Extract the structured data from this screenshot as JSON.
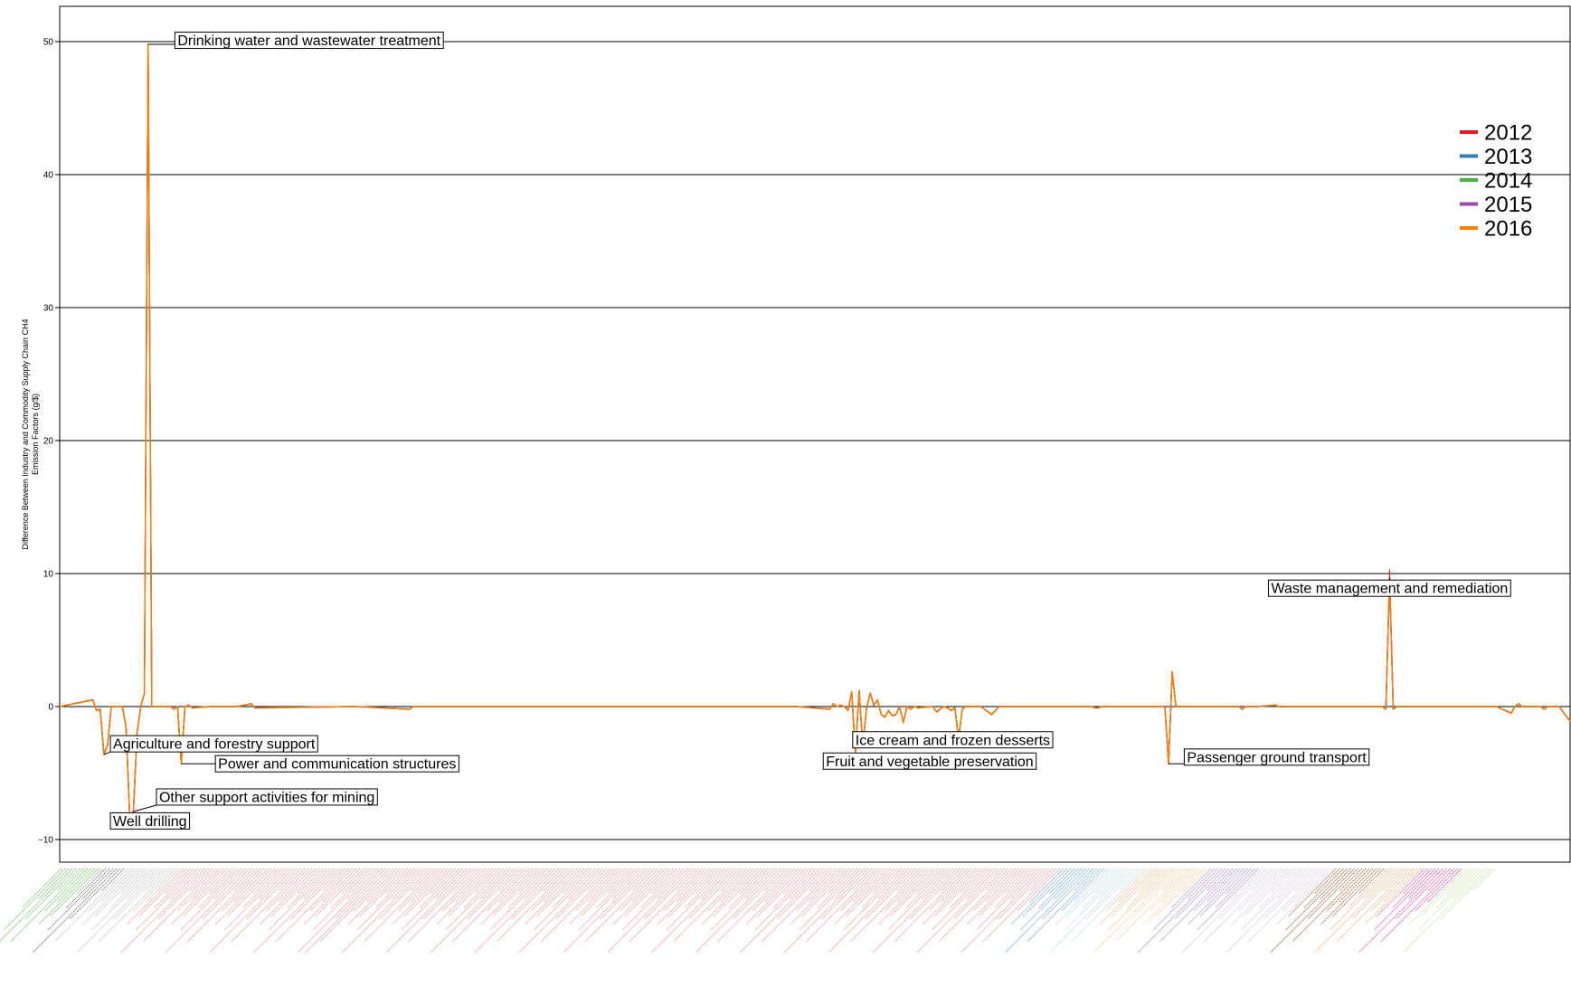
{
  "chart_data": {
    "type": "line",
    "title": "",
    "ylabel": "Difference Between Industry and Commodity Supply Chain CH4\nEmission Factors (g/$)",
    "xlabel": "",
    "ylim": [
      -11.5,
      52.8
    ],
    "yticks": [
      -10,
      0,
      10,
      20,
      30,
      40,
      50
    ],
    "ytick_labels": [
      "−10",
      "0",
      "10",
      "20",
      "30",
      "40",
      "50"
    ],
    "grid": "horizontal",
    "legend_placement": "top-right",
    "n_sectors": 411,
    "series": [
      {
        "name": "2012",
        "color": "#e41a1c"
      },
      {
        "name": "2013",
        "color": "#377eb8"
      },
      {
        "name": "2014",
        "color": "#4daf4a"
      },
      {
        "name": "2015",
        "color": "#984ea3"
      },
      {
        "name": "2016",
        "color": "#ff7f00"
      }
    ],
    "points": [
      [
        0,
        0
      ],
      [
        9,
        0.5
      ],
      [
        10,
        -0.3
      ],
      [
        11,
        -0.2
      ],
      [
        12,
        -3.6
      ],
      [
        13,
        -2.9
      ],
      [
        14,
        0
      ],
      [
        17,
        0
      ],
      [
        18,
        -1.5
      ],
      [
        19,
        -8.2
      ],
      [
        20,
        -7.9
      ],
      [
        21,
        -2
      ],
      [
        22,
        0
      ],
      [
        23,
        1
      ],
      [
        24,
        49.8
      ],
      [
        25,
        0
      ],
      [
        30,
        0
      ],
      [
        31,
        -0.2
      ],
      [
        32,
        0
      ],
      [
        33,
        -4.3
      ],
      [
        34,
        0
      ],
      [
        35,
        0.1
      ],
      [
        36,
        -0.1
      ],
      [
        41,
        0
      ],
      [
        48,
        0
      ],
      [
        52,
        0.2
      ],
      [
        53,
        -0.1
      ],
      [
        80,
        0
      ],
      [
        95,
        -0.2
      ],
      [
        96,
        0
      ],
      [
        120,
        0
      ],
      [
        200,
        0
      ],
      [
        209,
        -0.2
      ],
      [
        210,
        0.2
      ],
      [
        211,
        0
      ],
      [
        212,
        0.1
      ],
      [
        213,
        0
      ],
      [
        214,
        -0.3
      ],
      [
        215,
        1.1
      ],
      [
        216,
        -3.5
      ],
      [
        217,
        1.2
      ],
      [
        218,
        -2.9
      ],
      [
        219,
        -0.2
      ],
      [
        220,
        1.0
      ],
      [
        221,
        0.1
      ],
      [
        222,
        0.5
      ],
      [
        223,
        -0.6
      ],
      [
        224,
        -0.8
      ],
      [
        225,
        -0.3
      ],
      [
        226,
        -0.7
      ],
      [
        227,
        -0.6
      ],
      [
        228,
        0
      ],
      [
        229,
        -1.2
      ],
      [
        230,
        0
      ],
      [
        231,
        -0.2
      ],
      [
        232,
        0
      ],
      [
        233,
        -0.1
      ],
      [
        237,
        0
      ],
      [
        238,
        -0.4
      ],
      [
        239,
        -0.2
      ],
      [
        240,
        0
      ],
      [
        241,
        -0.1
      ],
      [
        242,
        -0.3
      ],
      [
        243,
        -0.1
      ],
      [
        244,
        -2.4
      ],
      [
        245,
        -0.2
      ],
      [
        246,
        0
      ],
      [
        250,
        0
      ],
      [
        253,
        -0.6
      ],
      [
        254,
        -0.3
      ],
      [
        255,
        0
      ],
      [
        280,
        0
      ],
      [
        281,
        -0.1
      ],
      [
        282,
        -0.1
      ],
      [
        283,
        0
      ],
      [
        300,
        0
      ],
      [
        301,
        -4.3
      ],
      [
        302,
        2.6
      ],
      [
        303,
        0
      ],
      [
        304,
        0
      ],
      [
        320,
        0
      ],
      [
        321,
        -0.2
      ],
      [
        322,
        0
      ],
      [
        325,
        0
      ],
      [
        330,
        0.1
      ],
      [
        331,
        0
      ],
      [
        340,
        0
      ],
      [
        350,
        0
      ],
      [
        359,
        0
      ],
      [
        360,
        -0.2
      ],
      [
        361,
        9.7
      ],
      [
        362,
        -0.2
      ],
      [
        363,
        0
      ],
      [
        380,
        0
      ],
      [
        390,
        0
      ],
      [
        394,
        -0.5
      ],
      [
        395,
        0
      ],
      [
        396,
        0.2
      ],
      [
        397,
        0
      ],
      [
        402,
        0
      ],
      [
        403,
        -0.2
      ],
      [
        404,
        0
      ],
      [
        407,
        0
      ],
      [
        410,
        -1.1
      ]
    ],
    "annotations": [
      {
        "label": "Drinking water and wastewater treatment",
        "x": 24,
        "y": 49.8,
        "lx": 32,
        "ly": 50.1,
        "anchor": "start"
      },
      {
        "label": "Agriculture and forestry support",
        "x": 12,
        "y": -3.6,
        "lx": 14.5,
        "ly": -2.8,
        "anchor": "start"
      },
      {
        "label": "Power and communication structures",
        "x": 33,
        "y": -4.3,
        "lx": 43,
        "ly": -4.3,
        "anchor": "start"
      },
      {
        "label": "Other support activities for mining",
        "x": 20,
        "y": -7.9,
        "lx": 27,
        "ly": -6.8,
        "anchor": "start"
      },
      {
        "label": "Well drilling",
        "x": 19,
        "y": -8.2,
        "lx": 14.5,
        "ly": -8.6,
        "anchor": "start"
      },
      {
        "label": "Ice cream and frozen desserts",
        "x": 244,
        "y": -2.4,
        "lx": 216,
        "ly": -2.5,
        "anchor": "start"
      },
      {
        "label": "Fruit and vegetable preservation",
        "x": 216,
        "y": -3.5,
        "lx": 208,
        "ly": -4.1,
        "anchor": "start"
      },
      {
        "label": "Passenger ground transport",
        "x": 301,
        "y": -4.3,
        "lx": 306,
        "ly": -3.8,
        "anchor": "start"
      },
      {
        "label": "Waste management and remediation",
        "x": 361,
        "y": 9.7,
        "lx": 361,
        "ly": 8.9,
        "anchor": "middle"
      }
    ],
    "x_category_colors": [
      {
        "from": 0,
        "to": 12,
        "color": "#4daf4a"
      },
      {
        "from": 12,
        "to": 18,
        "color": "#555555"
      },
      {
        "from": 18,
        "to": 33,
        "color": "#b0b0b0"
      },
      {
        "from": 33,
        "to": 272,
        "color": "#e8787a"
      },
      {
        "from": 272,
        "to": 284,
        "color": "#4a90c8"
      },
      {
        "from": 284,
        "to": 295,
        "color": "#a6cee3"
      },
      {
        "from": 295,
        "to": 303,
        "color": "#f4a460"
      },
      {
        "from": 303,
        "to": 312,
        "color": "#fdbf6f"
      },
      {
        "from": 312,
        "to": 326,
        "color": "#8e6fbf"
      },
      {
        "from": 326,
        "to": 346,
        "color": "#cab2d6"
      },
      {
        "from": 346,
        "to": 360,
        "color": "#8b4513"
      },
      {
        "from": 360,
        "to": 370,
        "color": "#e69a55"
      },
      {
        "from": 370,
        "to": 381,
        "color": "#e7298a"
      },
      {
        "from": 381,
        "to": 390,
        "color": "#b2df8a"
      }
    ]
  }
}
